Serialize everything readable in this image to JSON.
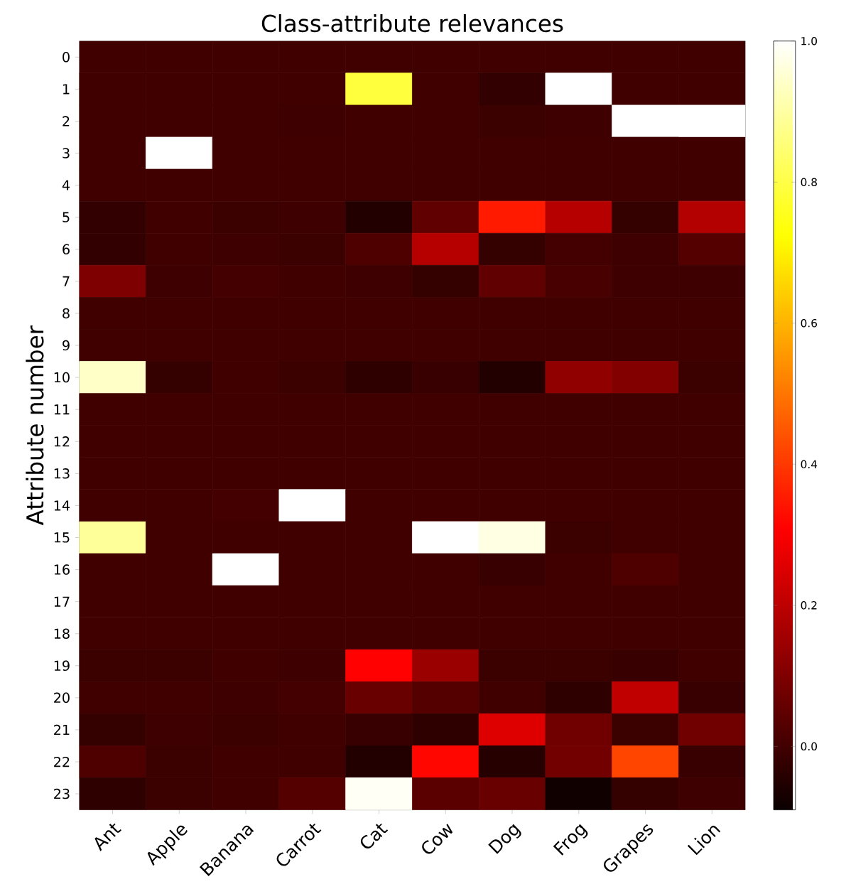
{
  "chart_data": {
    "type": "heatmap",
    "title": "Class-attribute relevances",
    "ylabel": "Attribute number",
    "categories": [
      "Ant",
      "Apple",
      "Banana",
      "Carrot",
      "Cat",
      "Cow",
      "Dog",
      "Frog",
      "Grapes",
      "Lion"
    ],
    "y_categories": [
      "0",
      "1",
      "2",
      "3",
      "4",
      "5",
      "6",
      "7",
      "8",
      "9",
      "10",
      "11",
      "12",
      "13",
      "14",
      "15",
      "16",
      "17",
      "18",
      "19",
      "20",
      "21",
      "22",
      "23"
    ],
    "cells": [
      [
        0,
        0,
        0,
        0,
        0,
        0,
        0,
        0,
        0,
        0
      ],
      [
        0,
        0,
        0,
        0,
        0.79,
        0,
        -0.025,
        1.0,
        0,
        0
      ],
      [
        0,
        0,
        0,
        -0.005,
        0,
        0,
        -0.01,
        -0.005,
        1.0,
        1.0
      ],
      [
        0,
        1.0,
        0,
        0,
        0,
        0,
        0,
        0,
        0,
        0
      ],
      [
        0,
        0,
        0,
        0,
        0,
        0,
        0,
        0,
        0,
        0
      ],
      [
        -0.025,
        0,
        -0.01,
        -0.005,
        -0.05,
        0.05,
        0.35,
        0.19,
        -0.02,
        0.185
      ],
      [
        -0.025,
        0,
        -0.005,
        -0.01,
        0.02,
        0.19,
        -0.02,
        0.005,
        -0.005,
        0.03
      ],
      [
        0.1,
        -0.005,
        0.005,
        0,
        -0.005,
        -0.02,
        0.05,
        0.01,
        -0.005,
        -0.005
      ],
      [
        0,
        0,
        0,
        0,
        0,
        0,
        0,
        0,
        0,
        0
      ],
      [
        0,
        0,
        0,
        0,
        0,
        0,
        0,
        0,
        0,
        0
      ],
      [
        0.94,
        -0.02,
        0,
        -0.01,
        -0.03,
        -0.015,
        -0.05,
        0.13,
        0.105,
        -0.01
      ],
      [
        0,
        0,
        0,
        0,
        0,
        0,
        0,
        0,
        0,
        0
      ],
      [
        0,
        0,
        0,
        0,
        0,
        0,
        0,
        0,
        0,
        0
      ],
      [
        0,
        0,
        0,
        0,
        0,
        0,
        0,
        0,
        0,
        0
      ],
      [
        0,
        0,
        0.005,
        1.0,
        0,
        0,
        0,
        0,
        0,
        0
      ],
      [
        0.89,
        0,
        0,
        0,
        0,
        1.0,
        0.97,
        -0.01,
        0,
        0
      ],
      [
        0,
        0,
        1.0,
        0,
        0,
        0,
        -0.015,
        0,
        0.02,
        0
      ],
      [
        0,
        0,
        0,
        0,
        0,
        0,
        0,
        0,
        0,
        0
      ],
      [
        0,
        0,
        0,
        0,
        0,
        0,
        0,
        0,
        0,
        0
      ],
      [
        -0.01,
        -0.01,
        0,
        -0.005,
        0.31,
        0.145,
        -0.01,
        -0.01,
        -0.015,
        0
      ],
      [
        0,
        0,
        -0.005,
        0.005,
        0.065,
        0.03,
        0,
        -0.03,
        0.205,
        -0.015
      ],
      [
        -0.02,
        -0.005,
        -0.01,
        0,
        -0.015,
        -0.03,
        0.255,
        0.075,
        -0.01,
        0.075
      ],
      [
        0.02,
        -0.01,
        0,
        0,
        -0.05,
        0.32,
        -0.045,
        0.08,
        0.42,
        -0.015
      ],
      [
        -0.03,
        -0.01,
        0,
        0.03,
        0.99,
        0.04,
        0.065,
        -0.08,
        -0.02,
        -0.005
      ]
    ],
    "clim": [
      -0.09,
      1.0
    ],
    "cticks": [
      {
        "value": 0,
        "label": "0.0"
      },
      0.2,
      0.4,
      0.6,
      0.8,
      {
        "value": 1,
        "label": "1.0"
      }
    ]
  }
}
